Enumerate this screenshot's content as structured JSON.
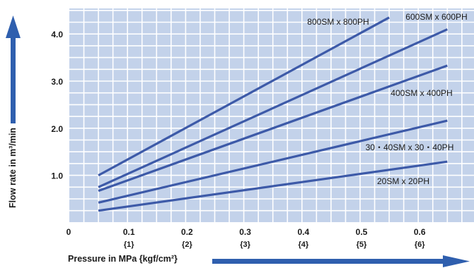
{
  "chart_data": {
    "type": "line",
    "xlabel": "Pressure in MPa {kgf/cm²}",
    "ylabel": "Flow rate in m³/min",
    "xlim": [
      0,
      0.7
    ],
    "ylim": [
      0,
      4.5
    ],
    "x_ticks": [
      "0",
      "0.1",
      "0.2",
      "0.3",
      "0.4",
      "0.5",
      "0.6"
    ],
    "x_ticks_secondary": [
      "{1}",
      "{2}",
      "{3}",
      "{4}",
      "{5}",
      "{6}"
    ],
    "y_ticks": [
      "1.0",
      "2.0",
      "3.0",
      "4.0"
    ],
    "grid": true,
    "series": [
      {
        "name": "800SM x 800PH",
        "x": [
          0.05,
          0.55
        ],
        "y": [
          1.0,
          4.35
        ],
        "color": "#3d5aa8"
      },
      {
        "name": "600SM x 600PH",
        "x": [
          0.05,
          0.65
        ],
        "y": [
          0.75,
          4.1
        ],
        "color": "#3d5aa8"
      },
      {
        "name": "400SM x 400PH",
        "x": [
          0.05,
          0.65
        ],
        "y": [
          0.67,
          3.33
        ],
        "color": "#3d5aa8"
      },
      {
        "name": "30・40SM x 30・40PH",
        "x": [
          0.05,
          0.65
        ],
        "y": [
          0.42,
          2.16
        ],
        "color": "#3d5aa8"
      },
      {
        "name": "20SM x 20PH",
        "x": [
          0.05,
          0.65
        ],
        "y": [
          0.25,
          1.29
        ],
        "color": "#3d5aa8"
      }
    ],
    "colors": {
      "plot_bg": "#c3d2ea",
      "grid": "#ffffff",
      "line": "#3d5aa8",
      "arrow": "#2f5fae"
    }
  }
}
